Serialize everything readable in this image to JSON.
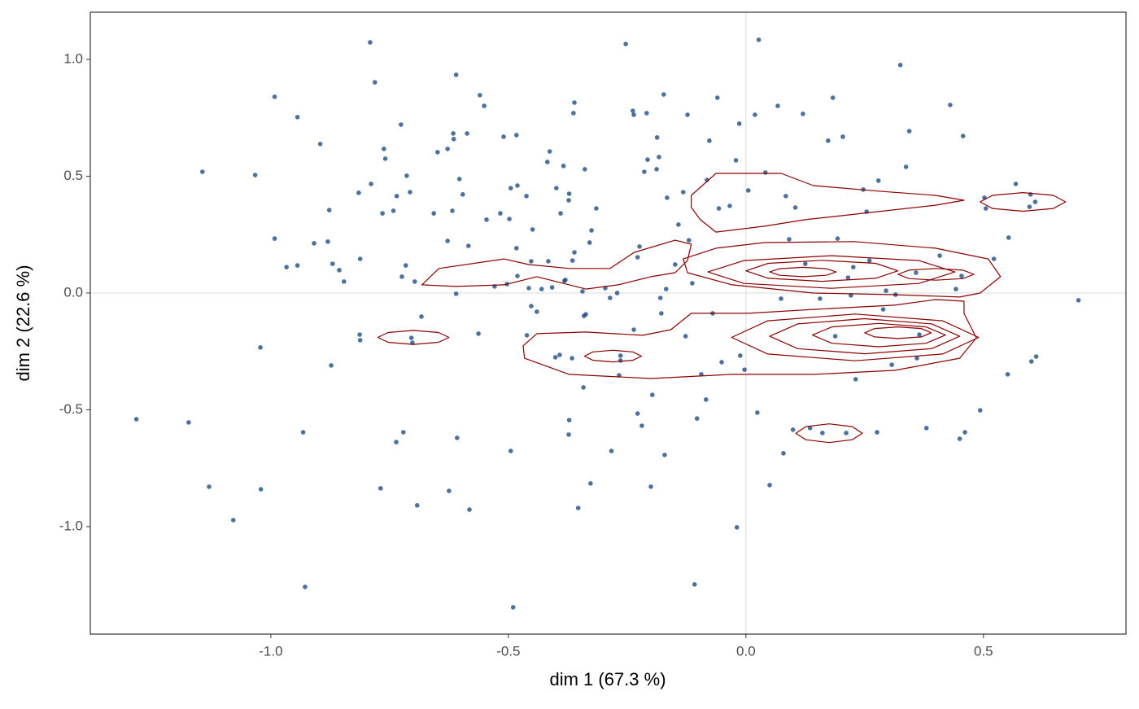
{
  "chart_data": {
    "type": "scatter",
    "x_label": "dim 1 (67.3 %)",
    "y_label": "dim 2 (22.6 %)",
    "xlim": [
      -1.38,
      0.8
    ],
    "ylim": [
      -1.46,
      1.202
    ],
    "xticks": [
      {
        "value": -1,
        "label": "-1.0"
      },
      {
        "value": -0.5,
        "label": "-0.5"
      },
      {
        "value": 0,
        "label": "0.0"
      },
      {
        "value": 0.5,
        "label": "0.5"
      }
    ],
    "yticks": [
      {
        "value": -1,
        "label": "-1.0"
      },
      {
        "value": -0.5,
        "label": "-0.5"
      },
      {
        "value": 0,
        "label": "0.0"
      },
      {
        "value": 0.5,
        "label": "0.5"
      },
      {
        "value": 1,
        "label": "1.0"
      }
    ],
    "reference_lines": {
      "x": 0,
      "y": 0
    },
    "points": {
      "color": "#1f4e86",
      "x": [
        -1.283,
        -1.173,
        -1.144,
        -1.13,
        -1.079,
        -1.033,
        -1.022,
        -1.021,
        -0.992,
        -0.992,
        -0.944,
        -0.932,
        -0.928,
        -0.967,
        -0.944,
        -0.909,
        -0.896,
        -0.88,
        -0.877,
        -0.873,
        -0.87,
        -0.856,
        -0.846,
        -0.815,
        -0.812,
        -0.813,
        -0.812,
        -0.791,
        -0.789,
        -0.781,
        -0.769,
        -0.765,
        -0.762,
        -0.759,
        -0.742,
        -0.736,
        -0.735,
        -0.726,
        -0.721,
        -0.724,
        -0.716,
        -0.714,
        -0.707,
        -0.704,
        -0.702,
        -0.697,
        -0.692,
        -0.683,
        -0.657,
        -0.649,
        -0.628,
        -0.628,
        -0.625,
        -0.618,
        -0.616,
        -0.615,
        -0.61,
        -0.608,
        -0.61,
        -0.603,
        -0.596,
        -0.587,
        -0.584,
        -0.582,
        -0.563,
        -0.56,
        -0.551,
        -0.546,
        -0.529,
        -0.517,
        -0.51,
        -0.498,
        -0.503,
        -0.495,
        -0.49,
        -0.495,
        -0.483,
        -0.483,
        -0.481,
        -0.481,
        -0.462,
        -0.461,
        -0.457,
        -0.452,
        -0.452,
        -0.449,
        -0.44,
        -0.43,
        -0.418,
        -0.416,
        -0.413,
        -0.408,
        -0.401,
        -0.399,
        -0.392,
        -0.39,
        -0.384,
        -0.382,
        -0.38,
        -0.373,
        -0.372,
        -0.366,
        -0.373,
        -0.372,
        -0.365,
        -0.363,
        -0.361,
        -0.361,
        -0.353,
        -0.344,
        -0.342,
        -0.341,
        -0.339,
        -0.337,
        -0.329,
        -0.327,
        -0.325,
        -0.315,
        -0.296,
        -0.286,
        -0.283,
        -0.271,
        -0.267,
        -0.264,
        -0.264,
        -0.253,
        -0.238,
        -0.236,
        -0.236,
        -0.228,
        -0.228,
        -0.224,
        -0.219,
        -0.214,
        -0.209,
        -0.207,
        -0.2,
        -0.197,
        -0.188,
        -0.187,
        -0.183,
        -0.18,
        -0.178,
        -0.173,
        -0.171,
        -0.168,
        -0.166,
        -0.149,
        -0.142,
        -0.132,
        -0.127,
        -0.123,
        -0.12,
        -0.113,
        -0.108,
        -0.103,
        -0.094,
        -0.084,
        -0.082,
        -0.077,
        -0.07,
        -0.06,
        -0.057,
        -0.051,
        -0.034,
        -0.021,
        -0.019,
        -0.014,
        -0.012,
        -0.003,
        0.005,
        0.019,
        0.024,
        0.027,
        0.041,
        0.05,
        0.067,
        0.074,
        0.079,
        0.084,
        0.091,
        0.099,
        0.104,
        0.12,
        0.125,
        0.135,
        0.156,
        0.161,
        0.173,
        0.183,
        0.188,
        0.193,
        0.204,
        0.211,
        0.221,
        0.231,
        0.247,
        0.254,
        0.276,
        0.279,
        0.289,
        0.295,
        0.307,
        0.315,
        0.325,
        0.337,
        0.344,
        0.358,
        0.38,
        0.408,
        0.43,
        0.442,
        0.45,
        0.461,
        0.493,
        0.505,
        0.553,
        0.568,
        0.601,
        0.611,
        0.7,
        0.502,
        0.599,
        0.597,
        0.609,
        0.457,
        0.454,
        0.522,
        0.551,
        0.365,
        0.36,
        0.226,
        0.26,
        0.215
      ],
      "y": [
        -0.54,
        -0.554,
        0.519,
        -0.829,
        -0.972,
        0.505,
        -0.233,
        -0.84,
        0.84,
        0.233,
        0.753,
        -0.596,
        -1.258,
        0.111,
        0.118,
        0.213,
        0.638,
        0.22,
        0.355,
        -0.31,
        0.125,
        0.098,
        0.049,
        0.429,
        0.146,
        -0.178,
        -0.202,
        1.073,
        0.467,
        0.902,
        -0.836,
        0.341,
        0.617,
        0.575,
        0.352,
        -0.638,
        0.415,
        0.721,
        -0.596,
        0.07,
        0.118,
        0.502,
        0.432,
        -0.192,
        -0.213,
        0.049,
        -0.909,
        -0.101,
        0.341,
        0.603,
        0.617,
        0.223,
        -0.847,
        0.352,
        0.683,
        0.659,
        0.934,
        -0.62,
        -0.003,
        0.488,
        0.422,
        0.683,
        0.202,
        -0.927,
        -0.174,
        0.847,
        0.801,
        0.314,
        0.028,
        0.341,
        0.669,
        0.317,
        0.038,
        -0.676,
        -1.345,
        0.449,
        0.676,
        0.192,
        0.46,
        0.073,
        0.415,
        -0.181,
        0.021,
        -0.056,
        0.136,
        0.272,
        -0.08,
        0.017,
        0.561,
        0.136,
        0.606,
        0.024,
        -0.275,
        0.449,
        -0.265,
        0.341,
        0.544,
        0.052,
        0.056,
        0.397,
        0.425,
        -0.279,
        -0.606,
        -0.544,
        0.139,
        0.77,
        0.815,
        0.174,
        -0.92,
        0.007,
        -0.404,
        -0.098,
        0.53,
        -0.091,
        0.216,
        -0.815,
        0.268,
        0.362,
        0.021,
        -0.021,
        -0.676,
        0,
        -0.352,
        -0.268,
        -0.289,
        1.066,
        0.78,
        0.763,
        -0.157,
        0.153,
        -0.516,
        0.199,
        -0.568,
        0.519,
        0.77,
        0.571,
        -0.829,
        -0.436,
        0.53,
        0.666,
        0.582,
        -0.021,
        -0.087,
        0.85,
        -0.693,
        0.017,
        0.408,
        0.122,
        0.293,
        0.432,
        -0.185,
        0.763,
        0.226,
        0.042,
        -1.247,
        -0.537,
        -0.348,
        -0.456,
        0.484,
        0.652,
        -0.087,
        0.836,
        0.362,
        -0.296,
        0.373,
        0.568,
        -1.003,
        0.725,
        -0.268,
        -0.328,
        0.439,
        0.763,
        -0.512,
        1.084,
        0.516,
        -0.822,
        0.801,
        -0.024,
        -0.686,
        0.415,
        0.23,
        -0.585,
        0.366,
        0.767,
        0.125,
        -0.578,
        -0.024,
        -0.599,
        0.652,
        0.836,
        -0.185,
        0.233,
        0.669,
        -0.599,
        -0.01,
        -0.369,
        0.443,
        0.348,
        -0.596,
        0.481,
        -0.07,
        0.01,
        -0.307,
        -0.007,
        0.976,
        0.54,
        0.693,
        0.087,
        -0.578,
        0.16,
        0.805,
        0.017,
        -0.624,
        -0.596,
        -0.502,
        0.362,
        0.237,
        0.467,
        -0.293,
        -0.272,
        -0.031,
        0.408,
        0.422,
        0.369,
        0.39,
        0.672,
        0.073,
        0.146,
        -0.348,
        -0.178,
        -0.279,
        0.111,
        0.139,
        0.066
      ]
    },
    "contour_color": "#8b0000",
    "contours": [
      {
        "x": [
          -0.625,
          -0.647,
          -0.7,
          -0.753,
          -0.775,
          -0.753,
          -0.7,
          -0.647
        ],
        "y": [
          -0.19,
          -0.169,
          -0.16,
          -0.169,
          -0.19,
          -0.211,
          -0.22,
          -0.211
        ]
      },
      {
        "x": [
          -0.22,
          -0.238,
          -0.28,
          -0.322,
          -0.34,
          -0.322,
          -0.28,
          -0.238
        ],
        "y": [
          -0.27,
          -0.252,
          -0.245,
          -0.252,
          -0.27,
          -0.288,
          -0.295,
          -0.288
        ]
      },
      {
        "x": [
          0.245,
          0.224,
          0.175,
          0.126,
          0.105,
          0.126,
          0.175,
          0.224
        ],
        "y": [
          -0.6,
          -0.572,
          -0.56,
          -0.572,
          -0.6,
          -0.628,
          -0.64,
          -0.628
        ]
      },
      {
        "x": [
          0.673,
          0.647,
          0.583,
          0.519,
          0.493,
          0.519,
          0.583,
          0.647
        ],
        "y": [
          0.39,
          0.418,
          0.43,
          0.418,
          0.39,
          0.362,
          0.35,
          0.362
        ]
      },
      {
        "x": [
          -0.466,
          -0.372,
          -0.2,
          -0.029,
          0.142,
          0.313,
          0.45,
          0.485,
          0.459,
          0.459,
          0.399,
          0.313,
          0.142,
          0.005,
          -0.115,
          -0.158,
          -0.217,
          -0.337,
          -0.44,
          -0.469
        ],
        "y": [
          -0.279,
          -0.348,
          -0.366,
          -0.348,
          -0.348,
          -0.331,
          -0.279,
          -0.192,
          -0.087,
          -0.035,
          -0.028,
          -0.052,
          -0.07,
          -0.087,
          -0.087,
          -0.157,
          -0.181,
          -0.167,
          -0.174,
          -0.226
        ]
      },
      {
        "x": [
          0.49,
          0.414,
          0.23,
          0.046,
          -0.03,
          0.046,
          0.23,
          0.414
        ],
        "y": [
          -0.19,
          -0.119,
          -0.09,
          -0.119,
          -0.19,
          -0.261,
          -0.29,
          -0.261
        ]
      },
      {
        "x": [
          0.45,
          0.391,
          0.25,
          0.109,
          0.05,
          0.109,
          0.25,
          0.391
        ],
        "y": [
          -0.185,
          -0.132,
          -0.11,
          -0.132,
          -0.185,
          -0.238,
          -0.26,
          -0.238
        ]
      },
      {
        "x": [
          0.42,
          0.379,
          0.28,
          0.181,
          0.14,
          0.181,
          0.28,
          0.379
        ],
        "y": [
          -0.18,
          -0.145,
          -0.13,
          -0.145,
          -0.18,
          -0.215,
          -0.23,
          -0.215
        ]
      },
      {
        "x": [
          0.39,
          0.369,
          0.32,
          0.271,
          0.25,
          0.271,
          0.32,
          0.369
        ],
        "y": [
          -0.17,
          -0.152,
          -0.145,
          -0.152,
          -0.17,
          -0.188,
          -0.195,
          -0.188
        ]
      },
      {
        "x": [
          -0.132,
          -0.063,
          0.039,
          0.228,
          0.399,
          0.51,
          0.536,
          0.493,
          0.45,
          0.313,
          0.142,
          -0.029,
          -0.123
        ],
        "y": [
          0.146,
          0.192,
          0.216,
          0.22,
          0.192,
          0.146,
          0.07,
          0,
          -0.017,
          -0.007,
          0,
          0.035,
          0.087
        ]
      },
      {
        "x": [
          0.44,
          0.364,
          0.18,
          -0.004,
          -0.08,
          -0.004,
          0.18,
          0.364
        ],
        "y": [
          0.09,
          0.139,
          0.16,
          0.139,
          0.09,
          0.041,
          0.02,
          0.041
        ]
      },
      {
        "x": [
          0.32,
          0.273,
          0.16,
          0.047,
          0,
          0.047,
          0.16,
          0.273
        ],
        "y": [
          0.095,
          0.127,
          0.14,
          0.127,
          0.095,
          0.063,
          0.05,
          0.063
        ]
      },
      {
        "x": [
          0.19,
          0.169,
          0.12,
          0.071,
          0.05,
          0.071,
          0.12,
          0.169
        ],
        "y": [
          0.09,
          0.104,
          0.11,
          0.104,
          0.09,
          0.076,
          0.07,
          0.076
        ]
      },
      {
        "x": [
          0.48,
          0.457,
          0.4,
          0.343,
          0.32,
          0.343,
          0.4,
          0.457
        ],
        "y": [
          0.08,
          0.098,
          0.105,
          0.098,
          0.08,
          0.062,
          0.055,
          0.062
        ]
      },
      {
        "x": [
          -0.115,
          -0.063,
          0.074,
          0.142,
          0.279,
          0.399,
          0.459,
          0.399,
          0.245,
          0.125,
          0.039,
          -0.063,
          -0.096,
          -0.115
        ],
        "y": [
          0.418,
          0.512,
          0.512,
          0.46,
          0.436,
          0.418,
          0.397,
          0.376,
          0.341,
          0.314,
          0.286,
          0.261,
          0.314,
          0.366
        ]
      },
      {
        "x": [
          -0.682,
          -0.646,
          -0.509,
          -0.457,
          -0.372,
          -0.286,
          -0.235,
          -0.149,
          -0.115,
          -0.123,
          -0.149,
          -0.2,
          -0.269,
          -0.337,
          -0.44,
          -0.509,
          -0.611
        ],
        "y": [
          0.035,
          0.105,
          0.146,
          0.122,
          0.105,
          0.105,
          0.174,
          0.226,
          0.209,
          0.139,
          0.087,
          0.07,
          0.035,
          0.017,
          0.07,
          0.035,
          0.028
        ]
      }
    ]
  }
}
